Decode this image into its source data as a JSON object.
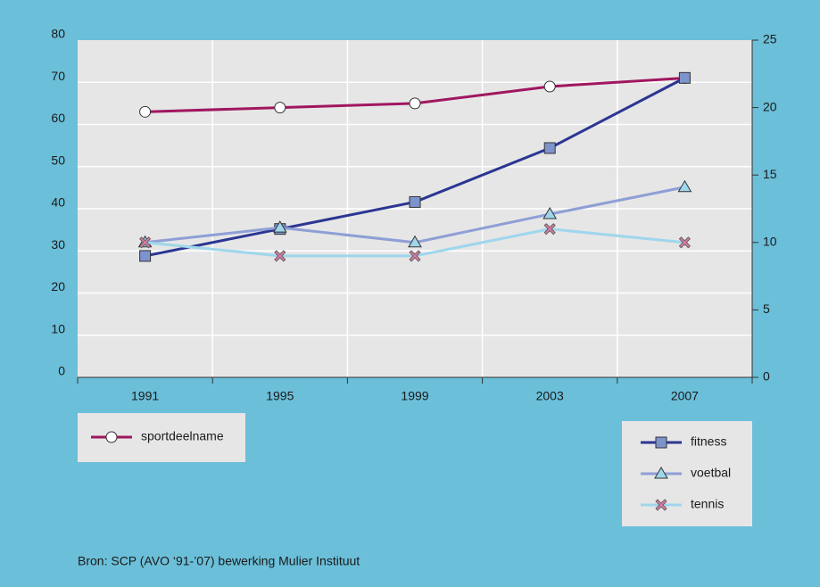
{
  "chart_data": {
    "type": "line",
    "categories": [
      "1991",
      "1995",
      "1999",
      "2003",
      "2007"
    ],
    "series": [
      {
        "name": "sportdeelname",
        "color": "#a0175f",
        "marker": "circle",
        "axis": "y",
        "values": [
          63,
          64,
          65,
          69,
          71
        ]
      },
      {
        "name": "fitness",
        "color": "#2b3692",
        "marker": "square",
        "axis": "y2",
        "values": [
          9,
          11,
          13,
          17,
          22.2
        ]
      },
      {
        "name": "voetbal",
        "color": "#8e9fd6",
        "marker": "triangle",
        "axis": "y2",
        "values": [
          10,
          11.1,
          10,
          12.1,
          14.1
        ]
      },
      {
        "name": "tennis",
        "color": "#9fd6ec",
        "marker": "cross",
        "axis": "y2",
        "values": [
          10,
          9,
          9,
          11,
          10
        ]
      }
    ],
    "ylim": [
      0,
      80
    ],
    "yticks": [
      0,
      10,
      20,
      30,
      40,
      50,
      60,
      70,
      80
    ],
    "y2lim": [
      0,
      25
    ],
    "y2ticks": [
      0,
      5,
      10,
      15,
      20,
      25
    ],
    "grid": true,
    "source": "Bron: SCP (AVO ‘91-’07) bewerking Mulier Instituut"
  }
}
